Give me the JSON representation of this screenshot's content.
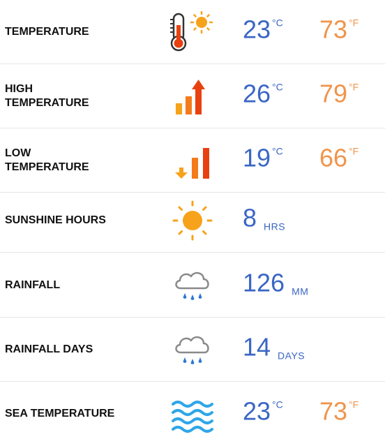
{
  "colors": {
    "celsius": "#3a66c4",
    "fahrenheit": "#f0944b",
    "sun": "#f7a21b",
    "rain": "#2b78d6",
    "sea": "#2fa6e8",
    "up": "#e8410f",
    "down": "#f7a21b"
  },
  "rows": [
    {
      "label": "TEMPERATURE",
      "icon": "thermometer-sun-icon",
      "c_value": "23",
      "c_unit": "°C",
      "f_value": "73",
      "f_unit": "°F"
    },
    {
      "label": "HIGH\nTEMPERATURE",
      "icon": "high-temperature-bars-icon",
      "c_value": "26",
      "c_unit": "°C",
      "f_value": "79",
      "f_unit": "°F"
    },
    {
      "label": "LOW\nTEMPERATURE",
      "icon": "low-temperature-bars-icon",
      "c_value": "19",
      "c_unit": "°C",
      "f_value": "66",
      "f_unit": "°F"
    },
    {
      "label": "SUNSHINE HOURS",
      "icon": "sun-icon",
      "value": "8",
      "unit": "HRS"
    },
    {
      "label": "RAINFALL",
      "icon": "rain-cloud-icon",
      "value": "126",
      "unit": "MM"
    },
    {
      "label": "RAINFALL DAYS",
      "icon": "rain-cloud-icon",
      "value": "14",
      "unit": "DAYS"
    },
    {
      "label": "SEA TEMPERATURE",
      "icon": "sea-waves-icon",
      "c_value": "23",
      "c_unit": "°C",
      "f_value": "73",
      "f_unit": "°F"
    }
  ]
}
